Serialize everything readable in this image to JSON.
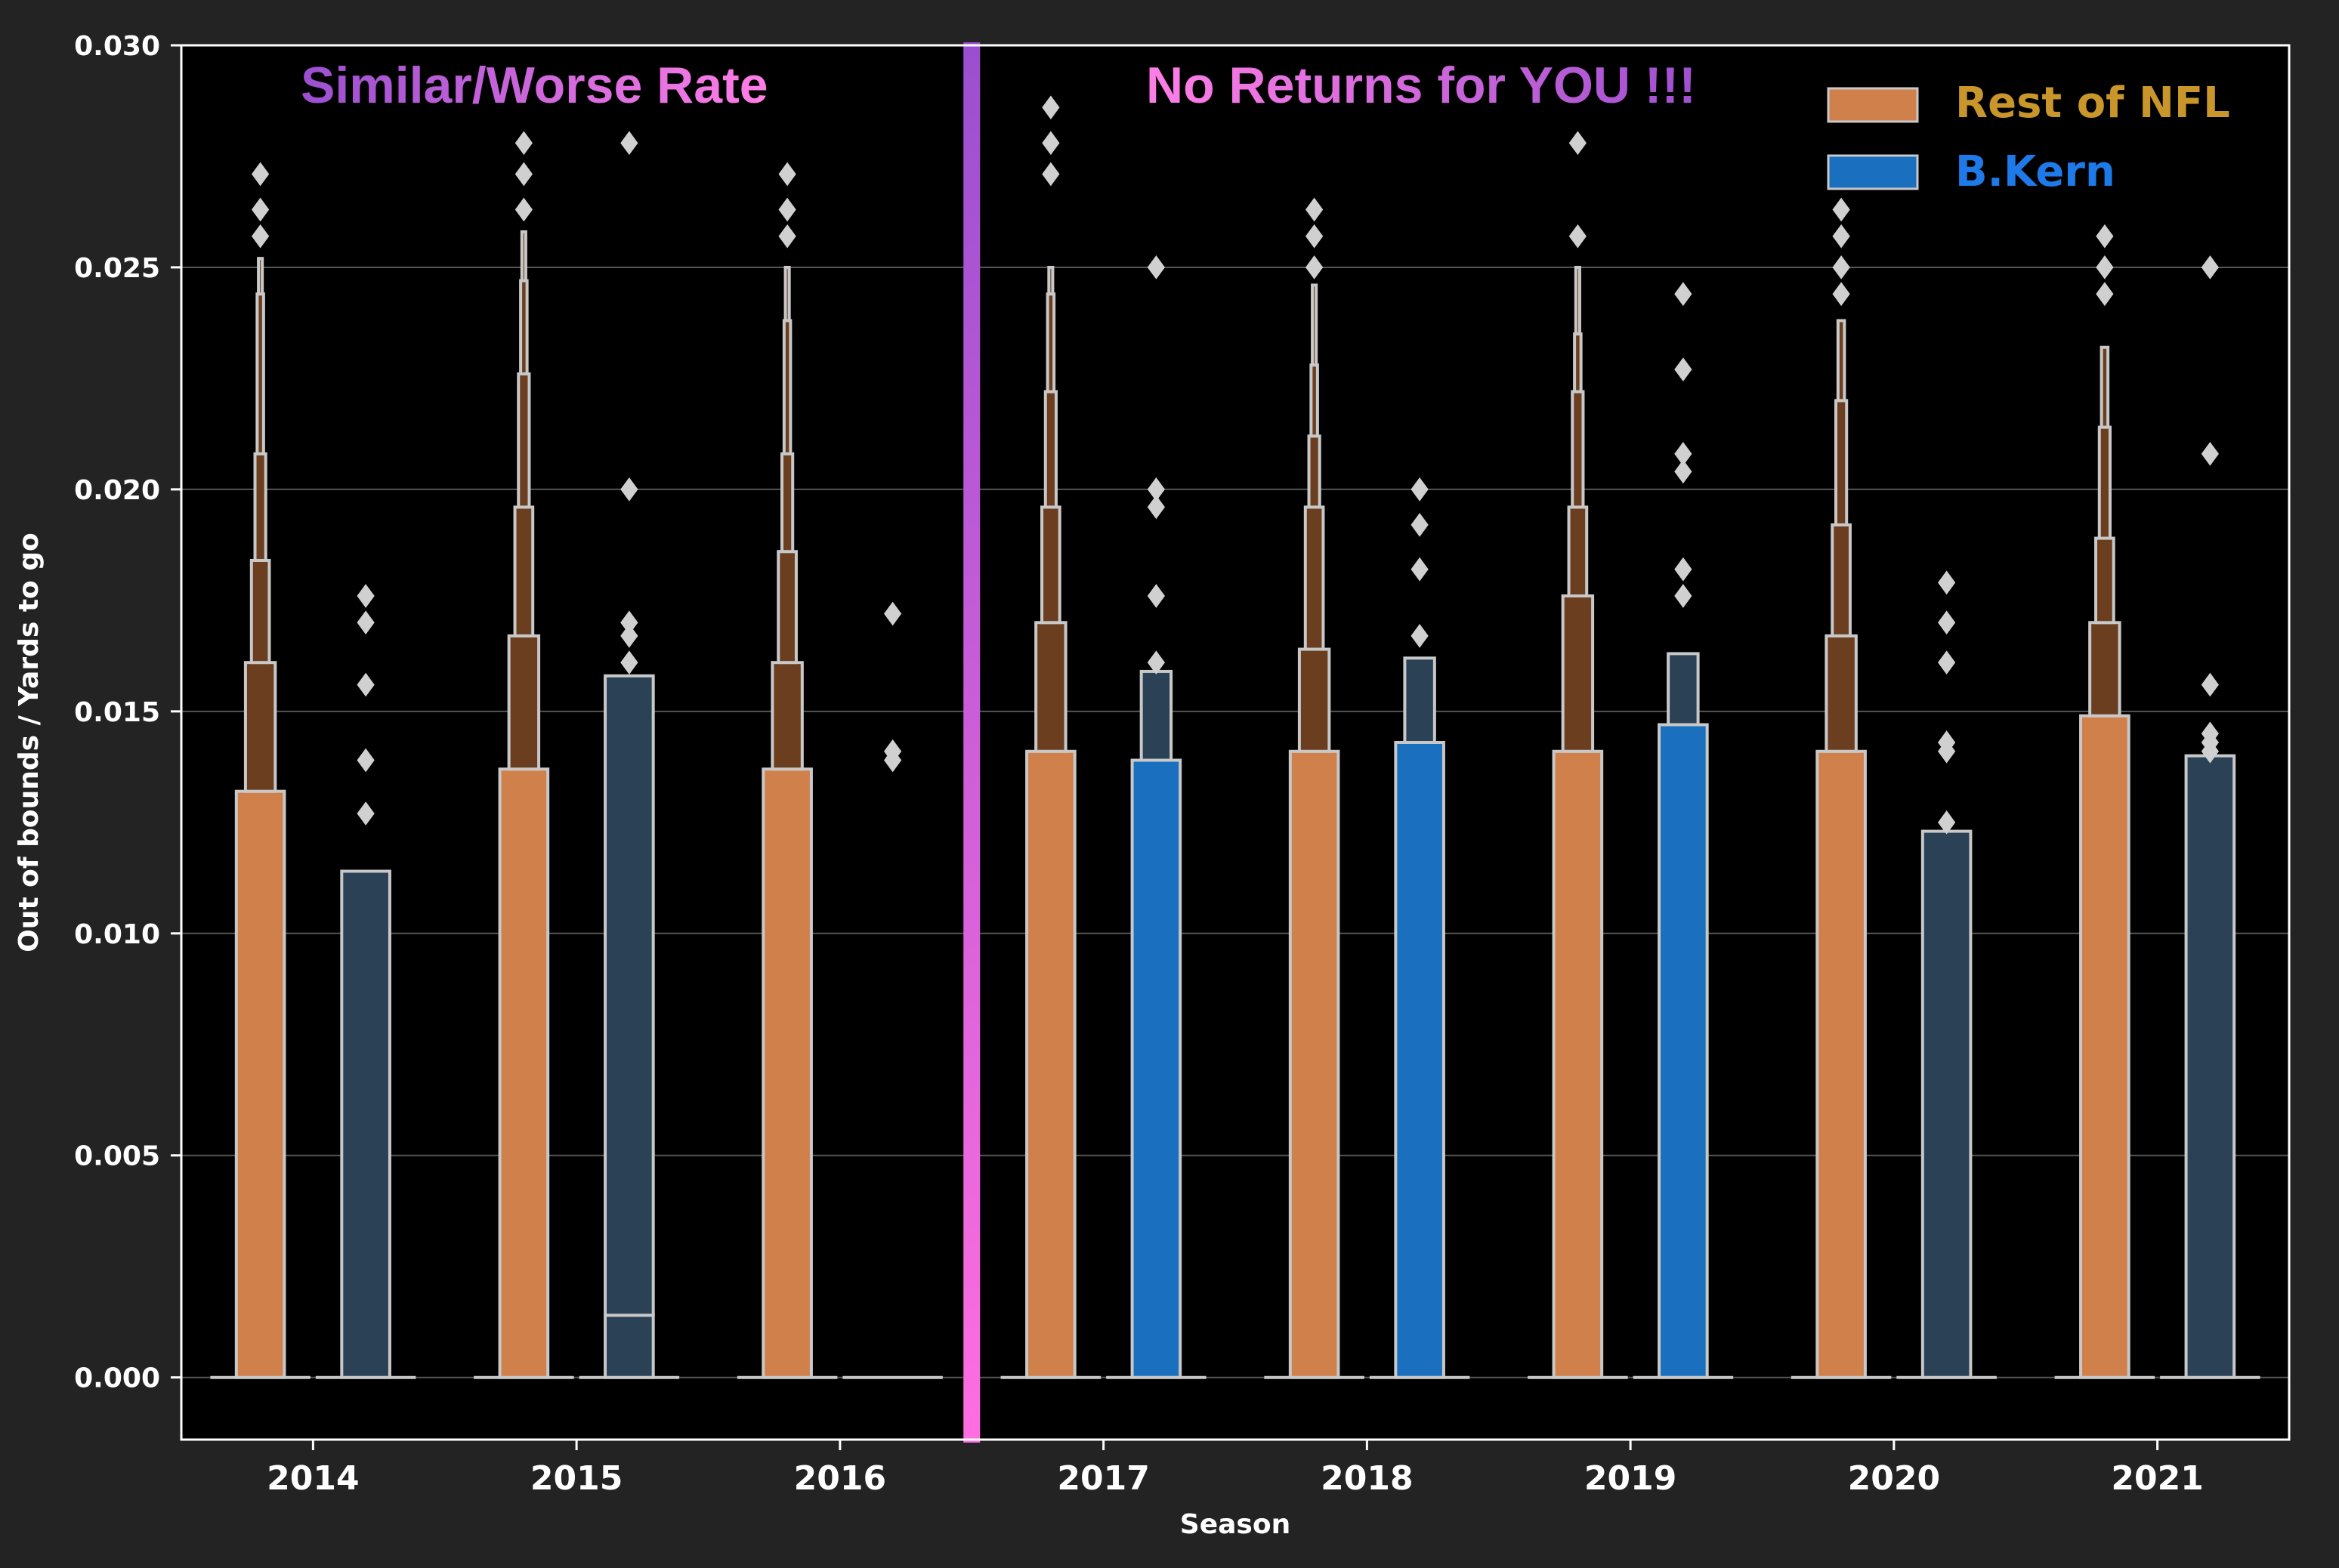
{
  "chart_data": {
    "type": "boxen",
    "xlabel": "Season",
    "ylabel": "Out of bounds / Yards to go",
    "ylim": [
      -0.0014,
      0.03
    ],
    "yticks": [
      0.0,
      0.005,
      0.01,
      0.015,
      0.02,
      0.025,
      0.03
    ],
    "ytick_labels": [
      "0.000",
      "0.005",
      "0.010",
      "0.015",
      "0.020",
      "0.025",
      "0.030"
    ],
    "categories": [
      "2014",
      "2015",
      "2016",
      "2017",
      "2018",
      "2019",
      "2020",
      "2021"
    ],
    "grid": true,
    "legend_position": "top-right",
    "divider_after_category": "2016",
    "annotations": [
      {
        "text": "Similar/Worse Rate",
        "region": "left"
      },
      {
        "text": "No Returns for YOU !!!",
        "region": "right"
      }
    ],
    "series": [
      {
        "name": "Rest of NFL",
        "color": "#d0804a",
        "legend_text_color": "#c8962a",
        "boxes": [
          {
            "season": "2014",
            "median": 0.0,
            "q3": 0.0132,
            "levels": [
              0.0161,
              0.0184,
              0.0208,
              0.0244,
              0.0252
            ],
            "outliers": [
              0.0257,
              0.0263,
              0.0271
            ]
          },
          {
            "season": "2015",
            "median": 0.0,
            "q3": 0.0137,
            "levels": [
              0.0167,
              0.0196,
              0.0226,
              0.0247,
              0.0258
            ],
            "outliers": [
              0.0263,
              0.0271,
              0.0278
            ]
          },
          {
            "season": "2016",
            "median": 0.0,
            "q3": 0.0137,
            "levels": [
              0.0161,
              0.0186,
              0.0208,
              0.0238,
              0.025
            ],
            "outliers": [
              0.0257,
              0.0263,
              0.0271
            ]
          },
          {
            "season": "2017",
            "median": 0.0,
            "q3": 0.0141,
            "levels": [
              0.017,
              0.0196,
              0.0222,
              0.0244,
              0.025
            ],
            "outliers": [
              0.0271,
              0.0278,
              0.0286
            ]
          },
          {
            "season": "2018",
            "median": 0.0,
            "q3": 0.0141,
            "levels": [
              0.0164,
              0.0196,
              0.0212,
              0.0228,
              0.0246
            ],
            "outliers": [
              0.025,
              0.0257,
              0.0263
            ]
          },
          {
            "season": "2019",
            "median": 0.0,
            "q3": 0.0141,
            "levels": [
              0.0176,
              0.0196,
              0.0222,
              0.0235,
              0.025
            ],
            "outliers": [
              0.0257,
              0.0278
            ]
          },
          {
            "season": "2020",
            "median": 0.0,
            "q3": 0.0141,
            "levels": [
              0.0167,
              0.0192,
              0.022,
              0.0238
            ],
            "outliers": [
              0.0244,
              0.025,
              0.0257,
              0.0263
            ]
          },
          {
            "season": "2021",
            "median": 0.0,
            "q3": 0.0149,
            "levels": [
              0.017,
              0.0189,
              0.0214,
              0.0232
            ],
            "outliers": [
              0.0244,
              0.025,
              0.0257
            ]
          }
        ]
      },
      {
        "name": "B.Kern",
        "color": "#1a6fbf",
        "legend_text_color": "#1e7ae8",
        "boxes": [
          {
            "season": "2014",
            "median": 0.0,
            "q3": 0.0114,
            "levels": [],
            "outliers": [
              0.0127,
              0.0139,
              0.0156,
              0.017,
              0.0176
            ],
            "light": true
          },
          {
            "season": "2015",
            "median": 0.0,
            "q3": 0.0014,
            "levels": [
              0.0158
            ],
            "outliers": [
              0.0161,
              0.0167,
              0.017,
              0.02,
              0.0278
            ],
            "light": true
          },
          {
            "season": "2016",
            "median": 0.0,
            "q3": 0.0,
            "levels": [],
            "outliers": [
              0.0139,
              0.0141,
              0.0172
            ],
            "light": true
          },
          {
            "season": "2017",
            "median": 0.0,
            "q3": 0.0139,
            "levels": [
              0.0159
            ],
            "outliers": [
              0.0161,
              0.0176,
              0.0196,
              0.02,
              0.025
            ]
          },
          {
            "season": "2018",
            "median": 0.0,
            "q3": 0.0143,
            "levels": [
              0.0162
            ],
            "outliers": [
              0.0167,
              0.0182,
              0.0192,
              0.02
            ]
          },
          {
            "season": "2019",
            "median": 0.0,
            "q3": 0.0147,
            "levels": [
              0.0163
            ],
            "outliers": [
              0.0176,
              0.0182,
              0.0204,
              0.0208,
              0.0227,
              0.0244
            ]
          },
          {
            "season": "2020",
            "median": 0.0,
            "q3": 0.0123,
            "levels": [],
            "outliers": [
              0.0125,
              0.0141,
              0.0143,
              0.0161,
              0.017,
              0.0179
            ],
            "light": true
          },
          {
            "season": "2021",
            "median": 0.0,
            "q3": 0.014,
            "levels": [],
            "outliers": [
              0.0141,
              0.0143,
              0.0145,
              0.0156,
              0.0208,
              0.025
            ],
            "light": true
          }
        ]
      }
    ]
  },
  "colors": {
    "figure_bg": "#232323",
    "axes_bg": "#000000",
    "grid": "#555555",
    "frame": "#ffffff",
    "edge": "#c8c8c8",
    "dark_box": "#2b4156",
    "divider_top": "#9a4fd0",
    "divider_bottom": "#ff6ee0",
    "annot_left_color": "#c06ad8",
    "annot_right_color": "#e06ad8"
  }
}
